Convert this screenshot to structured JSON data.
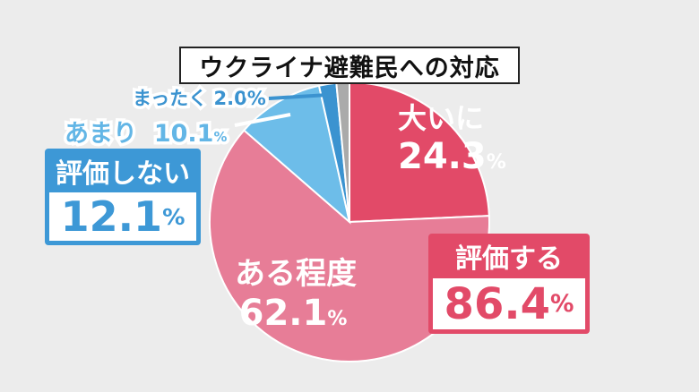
{
  "chart_data": {
    "type": "pie",
    "title": "ウクライナ避難民への対応",
    "start_angle_deg": 0,
    "direction": "clockwise",
    "slices": [
      {
        "label": "大いに",
        "value": 24.3,
        "display": "24.3",
        "color": "#e24a68"
      },
      {
        "label": "ある程度",
        "value": 62.1,
        "display": "62.1",
        "color": "#e77d97"
      },
      {
        "label": "あまり",
        "value": 10.1,
        "display": "10.1",
        "color": "#6dbde9"
      },
      {
        "label": "まったく",
        "value": 2.0,
        "display": "2.0",
        "color": "#3b93d0"
      },
      {
        "label": "",
        "value": 1.5,
        "display": "",
        "color": "#aaaaaa"
      }
    ],
    "summaries": [
      {
        "label": "評価する",
        "value": "86.4",
        "unit": "%",
        "color": "#e24a68"
      },
      {
        "label": "評価しない",
        "value": "12.1",
        "unit": "%",
        "color": "#3d98d6"
      }
    ],
    "unit": "%"
  }
}
